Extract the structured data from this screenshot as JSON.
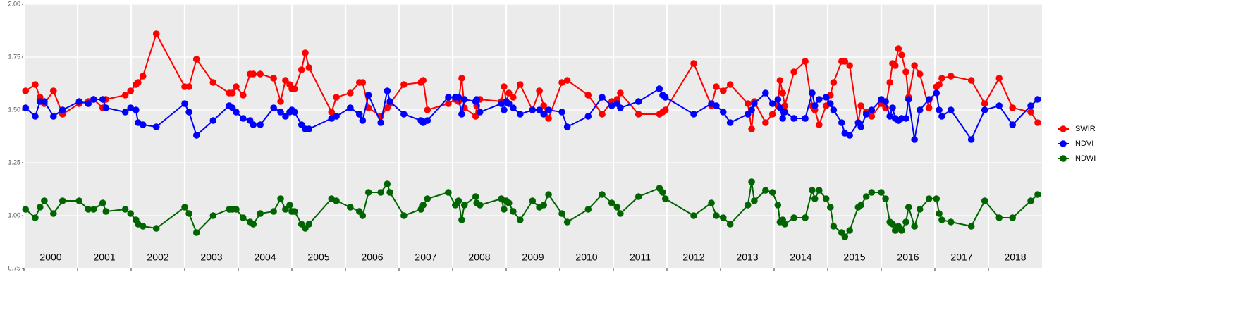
{
  "chart_data": {
    "type": "line",
    "x": [
      2000.03,
      2000.21,
      2000.3,
      2000.38,
      2000.55,
      2000.72,
      2001.03,
      2001.2,
      2001.3,
      2001.47,
      2001.53,
      2001.89,
      2001.99,
      2002.09,
      2002.13,
      2002.22,
      2002.47,
      2003.0,
      2003.08,
      2003.22,
      2003.53,
      2003.83,
      2003.89,
      2003.96,
      2004.09,
      2004.22,
      2004.28,
      2004.41,
      2004.66,
      2004.79,
      2004.88,
      2004.96,
      2005.0,
      2005.05,
      2005.18,
      2005.25,
      2005.32,
      2005.74,
      2005.83,
      2006.09,
      2006.26,
      2006.32,
      2006.43,
      2006.66,
      2006.78,
      2006.83,
      2007.09,
      2007.41,
      2007.45,
      2007.53,
      2007.92,
      2008.05,
      2008.11,
      2008.17,
      2008.22,
      2008.43,
      2008.45,
      2008.51,
      2008.91,
      2008.96,
      2009.0,
      2009.05,
      2009.13,
      2009.26,
      2009.49,
      2009.62,
      2009.7,
      2009.79,
      2010.04,
      2010.14,
      2010.53,
      2010.79,
      2010.97,
      2011.07,
      2011.13,
      2011.47,
      2011.86,
      2011.92,
      2011.97,
      2012.5,
      2012.83,
      2012.92,
      2013.05,
      2013.18,
      2013.51,
      2013.58,
      2013.63,
      2013.84,
      2013.97,
      2014.07,
      2014.11,
      2014.16,
      2014.2,
      2014.37,
      2014.58,
      2014.71,
      2014.76,
      2014.84,
      2014.97,
      2015.05,
      2015.11,
      2015.26,
      2015.32,
      2015.41,
      2015.57,
      2015.62,
      2015.72,
      2015.82,
      2016.0,
      2016.08,
      2016.16,
      2016.21,
      2016.26,
      2016.32,
      2016.38,
      2016.46,
      2016.51,
      2016.62,
      2016.72,
      2016.89,
      2017.03,
      2017.08,
      2017.13,
      2017.3,
      2017.68,
      2017.93,
      2018.2,
      2018.45,
      2018.79,
      2018.92
    ],
    "series": [
      {
        "name": "SWIR",
        "color": "#ff0000",
        "values": [
          1.59,
          1.62,
          1.56,
          1.53,
          1.59,
          1.48,
          1.53,
          1.54,
          1.55,
          1.51,
          1.55,
          1.57,
          1.59,
          1.62,
          1.63,
          1.66,
          1.86,
          1.61,
          1.61,
          1.74,
          1.63,
          1.58,
          1.58,
          1.61,
          1.57,
          1.67,
          1.67,
          1.67,
          1.65,
          1.54,
          1.64,
          1.62,
          1.6,
          1.6,
          1.69,
          1.77,
          1.7,
          1.49,
          1.56,
          1.58,
          1.63,
          1.63,
          1.51,
          1.47,
          1.51,
          1.53,
          1.62,
          1.63,
          1.64,
          1.5,
          1.53,
          1.55,
          1.54,
          1.65,
          1.51,
          1.47,
          1.52,
          1.55,
          1.54,
          1.61,
          1.54,
          1.58,
          1.56,
          1.62,
          1.5,
          1.59,
          1.52,
          1.46,
          1.63,
          1.64,
          1.57,
          1.48,
          1.54,
          1.55,
          1.58,
          1.48,
          1.48,
          1.49,
          1.5,
          1.72,
          1.52,
          1.61,
          1.59,
          1.62,
          1.53,
          1.41,
          1.54,
          1.44,
          1.48,
          1.52,
          1.64,
          1.58,
          1.52,
          1.68,
          1.73,
          1.52,
          1.5,
          1.43,
          1.52,
          1.57,
          1.63,
          1.73,
          1.73,
          1.71,
          1.44,
          1.52,
          1.49,
          1.47,
          1.53,
          1.51,
          1.63,
          1.72,
          1.71,
          1.79,
          1.76,
          1.68,
          1.56,
          1.71,
          1.67,
          1.51,
          1.61,
          1.62,
          1.65,
          1.66,
          1.64,
          1.53,
          1.65,
          1.51,
          1.49,
          1.44
        ]
      },
      {
        "name": "NDVI",
        "color": "#0000ff",
        "values": [
          1.51,
          1.47,
          1.54,
          1.54,
          1.47,
          1.5,
          1.54,
          1.53,
          1.55,
          1.55,
          1.51,
          1.49,
          1.51,
          1.5,
          1.44,
          1.43,
          1.42,
          1.53,
          1.49,
          1.38,
          1.45,
          1.52,
          1.51,
          1.49,
          1.46,
          1.45,
          1.43,
          1.43,
          1.51,
          1.49,
          1.47,
          1.49,
          1.5,
          1.49,
          1.43,
          1.41,
          1.41,
          1.46,
          1.47,
          1.51,
          1.48,
          1.45,
          1.57,
          1.44,
          1.59,
          1.54,
          1.48,
          1.45,
          1.44,
          1.45,
          1.56,
          1.56,
          1.56,
          1.48,
          1.55,
          1.54,
          1.55,
          1.49,
          1.53,
          1.5,
          1.54,
          1.53,
          1.51,
          1.48,
          1.5,
          1.5,
          1.48,
          1.5,
          1.49,
          1.42,
          1.47,
          1.56,
          1.52,
          1.53,
          1.51,
          1.54,
          1.6,
          1.57,
          1.56,
          1.48,
          1.53,
          1.52,
          1.49,
          1.44,
          1.48,
          1.5,
          1.53,
          1.58,
          1.53,
          1.55,
          1.51,
          1.46,
          1.49,
          1.46,
          1.46,
          1.58,
          1.52,
          1.55,
          1.56,
          1.53,
          1.5,
          1.44,
          1.39,
          1.38,
          1.44,
          1.42,
          1.48,
          1.5,
          1.55,
          1.54,
          1.47,
          1.51,
          1.46,
          1.45,
          1.46,
          1.46,
          1.55,
          1.36,
          1.5,
          1.55,
          1.58,
          1.5,
          1.47,
          1.5,
          1.36,
          1.5,
          1.52,
          1.43,
          1.52,
          1.55
        ]
      },
      {
        "name": "NDWI",
        "color": "#006400",
        "values": [
          1.03,
          0.99,
          1.04,
          1.07,
          1.01,
          1.07,
          1.07,
          1.03,
          1.03,
          1.06,
          1.02,
          1.03,
          1.01,
          0.98,
          0.96,
          0.95,
          0.94,
          1.04,
          1.01,
          0.92,
          1.0,
          1.03,
          1.03,
          1.03,
          0.99,
          0.97,
          0.96,
          1.01,
          1.02,
          1.08,
          1.03,
          1.05,
          1.02,
          1.02,
          0.96,
          0.94,
          0.96,
          1.08,
          1.07,
          1.04,
          1.02,
          1.0,
          1.11,
          1.11,
          1.15,
          1.11,
          1.0,
          1.03,
          1.05,
          1.08,
          1.11,
          1.05,
          1.07,
          0.98,
          1.05,
          1.09,
          1.06,
          1.05,
          1.08,
          1.03,
          1.07,
          1.06,
          1.02,
          0.98,
          1.07,
          1.04,
          1.05,
          1.1,
          1.01,
          0.97,
          1.03,
          1.1,
          1.06,
          1.04,
          1.01,
          1.09,
          1.13,
          1.11,
          1.08,
          1.0,
          1.06,
          1.0,
          0.99,
          0.96,
          1.05,
          1.16,
          1.07,
          1.12,
          1.11,
          1.05,
          0.97,
          0.98,
          0.96,
          0.99,
          0.99,
          1.12,
          1.08,
          1.12,
          1.08,
          1.04,
          0.95,
          0.92,
          0.9,
          0.93,
          1.04,
          1.05,
          1.09,
          1.11,
          1.11,
          1.08,
          0.97,
          0.96,
          0.93,
          0.95,
          0.93,
          0.97,
          1.04,
          0.95,
          1.03,
          1.08,
          1.08,
          1.01,
          0.98,
          0.97,
          0.95,
          1.07,
          0.99,
          0.99,
          1.07,
          1.1
        ]
      }
    ],
    "xlim": [
      2000,
      2019
    ],
    "xticks": [
      2000,
      2001,
      2002,
      2003,
      2004,
      2005,
      2006,
      2007,
      2008,
      2009,
      2010,
      2011,
      2012,
      2013,
      2014,
      2015,
      2016,
      2017,
      2018
    ],
    "ylim": [
      0.75,
      2
    ],
    "yticks": [
      {
        "value": 0.75,
        "label": "0.75"
      },
      {
        "value": 1,
        "label": "1.00"
      },
      {
        "value": 1.25,
        "label": "1.25"
      },
      {
        "value": 1.5,
        "label": "1.50"
      },
      {
        "value": 1.75,
        "label": "1.75"
      },
      {
        "value": 2,
        "label": "2.00"
      }
    ],
    "grid": true,
    "legend": "right"
  }
}
